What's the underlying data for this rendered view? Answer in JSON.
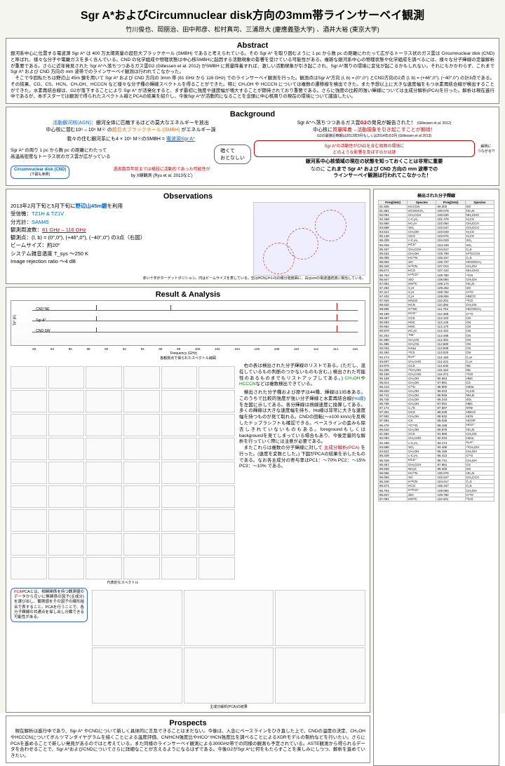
{
  "title": "Sgr A*およびCircumnuclear disk方向の3mm帯ラインサーベイ観測",
  "authors": "竹川俊也、岡朋治、田中邦彦、松村真司、三浦昂大 (慶應義塾大学) 、酒井大裕 (東京大学)",
  "sections": {
    "abstract": {
      "header": "Abstract",
      "text": "銀河系中心に位置する電波源 Sgr A* は 400 万太陽質量の超巨大ブラックホール (SMBH) であると考えられている。その Sgr A* を取り囲むように 1 pc から数 pc の距離にわたって広がるトーラス状のガス雲は Circumnuclear disk (CND) と呼ばれ、様々な分子や電離ガスを多く含んでいる。CND の化学組成や物理状態は中心核SMBHに起因する活動現象の影響を受けている可能性がある。複雑な銀河系中心の物理状態や化学組成を調べるには、様々な分子輝線の定量解析が重要である。さらに近年発見された Sgr A*へ落ちつつあるガス雲G2 (Gillessen et al. 2012) がSMBH に質量降着すれば、激しい活動現象が引き起こされ、Sgr A*周りの環境に変化が起こるかもしれない。それにもかかわらず、これまで Sgr A* および CND 方向の mm 波帯でのラインサーベイ観測は行われてこなかった。\n　そこで今回私たちは野辺山 45m 鏡を用いて Sgr A* および CND 方向の 3mm 帯 (81 GHz から 116 GHz) でのラインサーベイ観測を行った。観測点はSgr A*方向 (l, b) = (0°,0°) とCND方向の2点 (l, b) = (+46″,0″), (−40″,0″) の計3点である。その結果、CO、CS、HCN、CH₃OH、HCCCN など様々な分子種の輝線スペクトルを得ることができた。特に CH₃OH や HCCCN については複数の遷移線を検出できた。また予想以上に大きな速度幅をもつ水素再結合線が検出することができた。水素再結合線は、G2が落下することにより Sgr A* が活発化すると、まず最初に強度や速度幅が増大することが期待されており重要である。さらに強度の比較的強い輝線については主成分解析(PCA)を行った。解析は現在進行中であるが、本ポスターでは観測で得られたスペクトル線とPCAの結果を紹介し、今後Sgr A*が活動的になることを念頭に中心核周りの現在の環境について議論したい。"
    },
    "background": {
      "header": "Background",
      "left": {
        "line1_pre": "活動銀河核(AGN)",
        "line1_post": "：銀河全体に匹敵するほどの莫大なエネルギーを放出",
        "line2_pre": "中心核に潜む10⁶ – 10⁹ M☉ の",
        "line2_smbh": "超巨大ブラックホール (SMBH)",
        "line2_post": " がエネルギー源",
        "line3_pre": "我々の住む銀河系にも4 × 10⁶ M☉のSMBH = ",
        "line3_sgr": "電波源Sgr A*",
        "bullet1": "Sgr A* の周り 1 pc から数 pc の距離にわたって",
        "bullet2": "高温高密度なトーラス状のガス雲が広がっている",
        "cnd_label": "Circumnuclear disk (CND)",
        "cnd_sub": "(下図も参照)",
        "past_line1": "過去数百年前までは格段に活動的であった可能性が",
        "past_line2": "by X線観測 (Ryu et al. 2013など)",
        "bubble": "暗くて\nおとなしい"
      },
      "right": {
        "line1_pre": "Sgr A*へ落ちつつあるガス雲",
        "line1_g2": "G2",
        "line1_post": "の発見が報告された！",
        "line1_cite": "(Gillessen et al. 2012)",
        "line2_pre": "中心核に",
        "line2_red1": "質量降着",
        "line2_arrow": "→",
        "line2_red2": "活動現象を引き起こすことが期待！",
        "line3": "G2の最接近時期は2013年9月もしくは2014年の3月 (Gillessen et al 2013)",
        "box1": "Sgr A*の活動性がCNDを含む周囲の環境に\nどのような影響を及ぼすのかは謎",
        "side": "解明に\nつながる?!",
        "line4": "銀河系中心核領域の現在の状態を知っておくことは非常に重要",
        "line5_pre": "なのに",
        "line5_main": "これまで Sgr A* および CND 方向の mm 波帯での\nラインサーベイ観測は行われてこなかった！"
      }
    },
    "observations": {
      "header": "Observations",
      "line1_pre": "2013年2月下旬と5月下旬に",
      "line1_tel": "野辺山45m鏡",
      "line1_post": "を利用",
      "line2_label": "受信機：",
      "line2_val": "TZ1H & TZ1V",
      "line3_label": "分光計：",
      "line3_val": "SAM45",
      "line4_label": "観測周波数：",
      "line4_val": "81 GHz – 116 GHz",
      "line5": "観測点：(l, b) = (0″,0″), (+46″,0″), (−40″,0″) の3点（右図）",
      "line6": "ビームサイズ：約20″",
      "line7": "システム雑音温度 T_sys  ～250 K",
      "line8": "Image rejection ratio ～4 dB",
      "img_caption": "赤い十字がターゲットポジション。円はビームサイズを表している。空はHCN(J=1-0)の積分強度図に、白はcmの電波連続波に相当している。"
    },
    "result": {
      "header": "Result & Analysis",
      "ylabel": "Ta* (K)",
      "xlabel": "Frequency (GHz)",
      "targets": [
        "CND NE",
        "Sgr A*",
        "CND SW"
      ],
      "xticks": [
        "82",
        "84",
        "86",
        "88",
        "90",
        "92",
        "94",
        "96",
        "98",
        "100",
        "102",
        "104",
        "106",
        "108",
        "110",
        "112",
        "114",
        "116"
      ],
      "yticks": [
        "−0.5",
        "0",
        "1",
        "1.5"
      ],
      "spec_caption": "各観測点で得られたスペクトル線図",
      "rep_caption": "代表的なスペクトル",
      "analysis1_pre": "　右の表は検出された分子輝線のリストである。(ただし、混在しているもの判断のつかないものも含む。) 検出された可能性のあるものまでもリストアップしてある。) ",
      "analysis1_ch3oh": "CH₃OH",
      "analysis1_ya": "や",
      "analysis1_hcccn": "HCCCN",
      "analysis1_post": "などは複数検出できている。",
      "analysis2_pre": "　検出された分子種および原子は44種、輝線は135本ある。このうちで比較的強度が強い分子輝線と水素再結合線(",
      "analysis2_ha": "Hα線",
      "analysis2_mid": ")を左図に示してある。各分輝線は視線速度に換算してある。多くの輝線は大きな速度幅を持ち、Hα線は非常に大きな速度幅を持つものが見て取れる。CNDの回転(～±100 km/s)を反映したドップラシフトも確認できる。ベースラインの歪みも除去しきれていないものもある。foregroundもしくはbackgroundを見てしまっている場合もあり、今後定量的な解析を行っていく際には注意が必要である。\n　またこれらは複数の分子輝線に対して ",
      "analysis2_pca": "主成分解析(PCA)",
      "analysis2_post": " を行った。(速度を変数とした。) 下図がPCAの結果を示したものである。なお各主成分の寄与率はPC1：～70% PC2：～15% PC3：～10% である。",
      "pca_box": "PCAとは、相関関係を持つ観測値のデータから互いに無関係の因子(主成分)を選び出し、観測値をその因子の線形結合で表すること。PCAを行うことで、各分子輝線の共通点を探し出し分類できる可能性がある。",
      "pca_caption": "主成分解析(PCA)の結果"
    },
    "prospects": {
      "header": "Prospects",
      "text": "　現在解析は進行中であり、Sgr A* やCNDについて新しく具体的に言及できることはまだない。今後は、入念にベースラインをひき直した上で、CNDの温度の決定、CH₃OHやHCCCNについてボルツマンダイヤグラムを描くことによる温度評価、CN/HCN強度比やHCO⁺/HCN強度比を調べることによるXDRモデルの制約などを行いたい。さらにPCAを進めることで新しい発見があるのではと考えている。また同様のラインサーベイ観測による300GHz帯での同様の観測も予定されている。ASTE観測から得られるデータを合わせることで、Sgr A*およびCNDについてさらに詳細なことが言えるようになるはずである。今後G2がSgr A*に何をもたらすことを楽しみにしつつ、解析を進めていきたい。"
    },
    "detected": {
      "header": "検出された分子輝線",
      "cols": [
        "Freq(GHz)",
        "Species",
        "Freq(GHz)",
        "Species"
      ],
      "rows": [
        [
          "81.505",
          "HCCCN",
          "99.300",
          "SO"
        ],
        [
          "81.881",
          "HCOOCH₃",
          "100.076",
          "HC₃N"
        ],
        [
          "82.094",
          "CH₃CCH",
          "100.630",
          "NH₂CHO"
        ],
        [
          "82.458",
          "c-C₃H₂",
          "101.478",
          "H₂CS"
        ],
        [
          "82.966",
          "HC₃N",
          "102.064",
          "CH₃CCH"
        ],
        [
          "83.688",
          "SO₂",
          "102.547",
          "CH₃CCH"
        ],
        [
          "84.521",
          "CH₃OH",
          "103.040",
          "H₂CS"
        ],
        [
          "85.139",
          "OCS",
          "103.575",
          "H₂CS"
        ],
        [
          "85.339",
          "c-C₃H₂",
          "104.029",
          "SO₂"
        ],
        [
          "85.348",
          "HCS⁺",
          "104.239",
          "SO₂"
        ],
        [
          "85.457",
          "CH₃CCH",
          "104.617",
          "C₂S"
        ],
        [
          "85.531",
          "CH₃OH",
          "105.799",
          "H¹³CCCN"
        ],
        [
          "86.055",
          "HC¹⁵N",
          "106.347",
          "C₂S"
        ],
        [
          "86.094",
          "SO",
          "106.737",
          "HCOOCH₃"
        ],
        [
          "86.340",
          "H¹³CN",
          "107.014",
          "CH₃OH"
        ],
        [
          "86.671",
          "HCO",
          "107.424",
          "NH₂CHO"
        ],
        [
          "86.754",
          "H¹³CO⁺",
          "108.780",
          "¹³CN"
        ],
        [
          "86.847",
          "SiO",
          "108.894",
          "CH₃OH"
        ],
        [
          "87.091",
          "HN¹³C",
          "109.174",
          "HC₃N"
        ],
        [
          "87.284",
          "C₂H",
          "109.252",
          "SO"
        ],
        [
          "87.317",
          "C₂H",
          "109.782",
          "C¹⁸O"
        ],
        [
          "87.402",
          "C₂H",
          "109.906",
          "HNCO"
        ],
        [
          "87.925",
          "HNCO",
          "110.201",
          "¹³CO"
        ],
        [
          "88.632",
          "HCN",
          "110.384",
          "CH₃CN"
        ],
        [
          "88.866",
          "H¹⁵NC",
          "111.764",
          "HCOOCH₃"
        ],
        [
          "89.189",
          "HCO⁺",
          "112.359",
          "C¹⁷O"
        ],
        [
          "89.487",
          "CCS",
          "113.123",
          "CN"
        ],
        [
          "90.593",
          "HNC",
          "113.145",
          "CN"
        ],
        [
          "90.664",
          "HNC",
          "113.170",
          "CN"
        ],
        [
          "90.979",
          "HC₃N",
          "113.191",
          "CN"
        ],
        [
          "91.203",
          "³He⁺",
          "113.488",
          "CN"
        ],
        [
          "91.980",
          "CH₃CN",
          "113.491",
          "CN"
        ],
        [
          "91.985",
          "CH₃CN",
          "113.500",
          "CN"
        ],
        [
          "92.034",
          "H41α",
          "113.509",
          "CN"
        ],
        [
          "92.494",
          "¹³CS",
          "113.520",
          "CN"
        ],
        [
          "93.174",
          "N₂H⁺",
          "114.183",
          "C₄H"
        ],
        [
          "93.607",
          "CH₃CHO",
          "114.221",
          "C₄H"
        ],
        [
          "93.870",
          "CCS",
          "114.940",
          "NS"
        ],
        [
          "94.405",
          "¹³CH₃OH",
          "115.154",
          "NS"
        ],
        [
          "95.150",
          "CH₃CHO",
          "115.271",
          "¹²CO"
        ],
        [
          "95.169",
          "CH₃OH",
          "90.664",
          "HNC"
        ],
        [
          "95.914",
          "CH₃OH",
          "97.981",
          "CS"
        ],
        [
          "96.413",
          "C³⁴S",
          "98.900",
          "H40α"
        ],
        [
          "96.633",
          "CH₃OH",
          "99.023",
          "H₂CO"
        ],
        [
          "96.741",
          "CH₃OH",
          "85.926",
          "NH₂D"
        ],
        [
          "96.745",
          "CH₃OH",
          "86.243",
          "SO₂"
        ],
        [
          "96.756",
          "CH₃OH",
          "87.091",
          "HBC"
        ],
        [
          "97.172",
          "C₃³S",
          "87.597",
          "NTD"
        ],
        [
          "97.301",
          "OCS",
          "88.239",
          "HNCO"
        ],
        [
          "97.582",
          "CH₃OH",
          "88.632",
          "HCN"
        ],
        [
          "97.981",
          "CS",
          "89.045",
          "HCOP"
        ],
        [
          "96.476",
          "¹³C¹⁸O",
          "89.189",
          "HCO⁺"
        ],
        [
          "96.633",
          "CH₃OH",
          "90.979",
          "HC₃N"
        ],
        [
          "81.582",
          "CCS",
          "91.980",
          "CH₃CN"
        ],
        [
          "82.094",
          "CH₃CHO",
          "92.034",
          "H41α"
        ],
        [
          "82.458",
          "c-C₃H₂",
          "93.174",
          "N₂H⁺"
        ],
        [
          "83.688",
          "SO₂",
          "94.405",
          "¹³CH₃OH"
        ],
        [
          "84.521",
          "CH₃OH",
          "95.169",
          "CH₃OH"
        ],
        [
          "85.339",
          "c-C₃H₂",
          "96.413",
          "C³⁴S"
        ],
        [
          "85.348",
          "HCS⁺",
          "96.741",
          "CH₃OH"
        ],
        [
          "85.457",
          "CH₃CCH",
          "97.981",
          "CS"
        ],
        [
          "85.926",
          "NH₂D",
          "99.300",
          "SO"
        ],
        [
          "86.055",
          "HC¹⁵N",
          "100.076",
          "HC₃N"
        ],
        [
          "86.094",
          "SO",
          "102.547",
          "CH₃CCH"
        ],
        [
          "86.340",
          "H¹³CN",
          "104.617",
          "C₂S"
        ],
        [
          "86.671",
          "HCO",
          "106.347",
          "C₂S"
        ],
        [
          "86.754",
          "H¹³CO⁺",
          "108.894",
          "CH₃OH"
        ],
        [
          "86.847",
          "SiO",
          "109.782",
          "C¹⁸O"
        ],
        [
          "87.091",
          "HN¹³C",
          "110.201",
          "¹³CO"
        ]
      ]
    }
  }
}
